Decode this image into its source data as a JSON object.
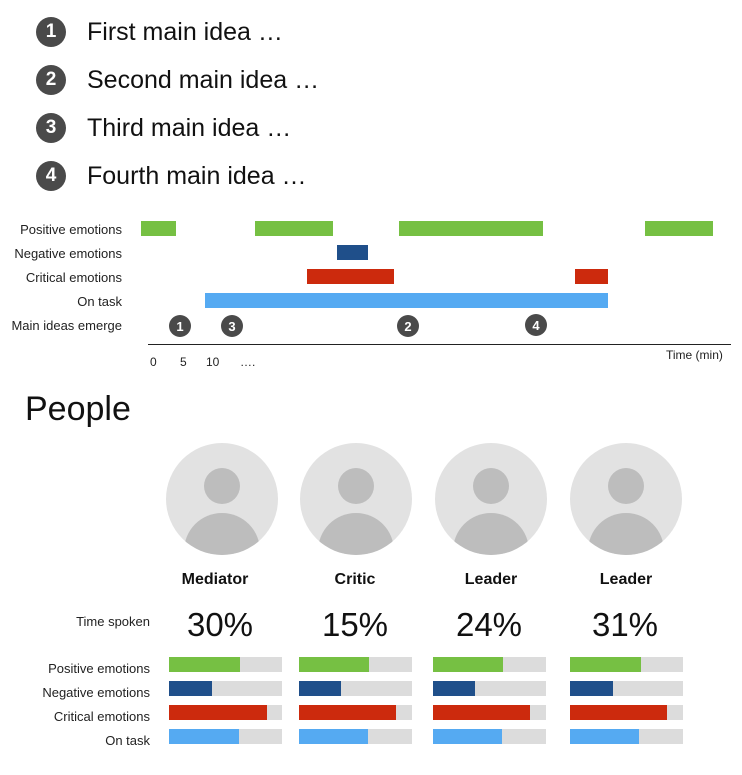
{
  "ideas": [
    {
      "num": "1",
      "text": "First main idea …"
    },
    {
      "num": "2",
      "text": "Second main idea …"
    },
    {
      "num": "3",
      "text": "Third main idea …"
    },
    {
      "num": "4",
      "text": "Fourth main idea …"
    }
  ],
  "timeline": {
    "rows": [
      {
        "label": "Positive emotions",
        "color": "#76c043"
      },
      {
        "label": "Negative emotions",
        "color": "#1f4f8a"
      },
      {
        "label": "Critical emotions",
        "color": "#cc2a0d"
      },
      {
        "label": "On task",
        "color": "#55aaf2"
      },
      {
        "label": "Main ideas emerge"
      }
    ],
    "axis_title": "Time (min)",
    "tick_labels": [
      "0",
      "5",
      "10",
      "…."
    ],
    "markers": [
      "1",
      "3",
      "2",
      "4"
    ]
  },
  "people": {
    "title": "People",
    "time_label": "Time spoken",
    "metric_labels": [
      "Positive emotions",
      "Negative emotions",
      "Critical emotions",
      "On task"
    ],
    "metric_colors": [
      "#76c043",
      "#1f4f8a",
      "#cc2a0d",
      "#55aaf2"
    ],
    "members": [
      {
        "role": "Mediator",
        "time": "30%",
        "levels": [
          0.63,
          0.38,
          0.87,
          0.62
        ]
      },
      {
        "role": "Critic",
        "time": "15%",
        "levels": [
          0.62,
          0.37,
          0.86,
          0.61
        ]
      },
      {
        "role": "Leader",
        "time": "24%",
        "levels": [
          0.62,
          0.37,
          0.86,
          0.61
        ]
      },
      {
        "role": "Leader",
        "time": "31%",
        "levels": [
          0.63,
          0.38,
          0.86,
          0.61
        ]
      }
    ]
  }
}
